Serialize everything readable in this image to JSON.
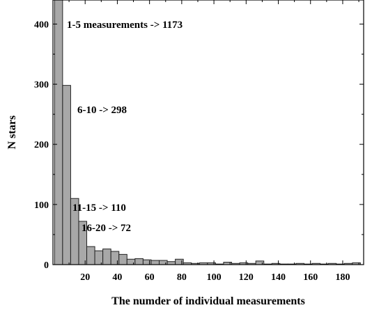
{
  "chart_data": {
    "type": "bar",
    "title": "",
    "xlabel": "The numder of individual measurements",
    "ylabel": "N stars",
    "xlim": [
      0,
      193
    ],
    "ylim": [
      0,
      440
    ],
    "x_ticks": [
      20,
      40,
      60,
      80,
      100,
      120,
      140,
      160,
      180
    ],
    "y_ticks": [
      0,
      100,
      200,
      300,
      400
    ],
    "grid": false,
    "bin_width": 5,
    "bin_starts": [
      1,
      6,
      11,
      16,
      21,
      26,
      31,
      36,
      41,
      46,
      51,
      56,
      61,
      66,
      71,
      76,
      81,
      86,
      91,
      96,
      101,
      106,
      111,
      116,
      121,
      126,
      131,
      136,
      141,
      146,
      151,
      156,
      161,
      166,
      171,
      176,
      181,
      186
    ],
    "values": [
      1173,
      298,
      110,
      72,
      30,
      23,
      26,
      22,
      17,
      9,
      10,
      8,
      7,
      7,
      5,
      9,
      3,
      2,
      3,
      3,
      1,
      4,
      2,
      3,
      2,
      6,
      1,
      2,
      1,
      1,
      2,
      1,
      2,
      1,
      2,
      1,
      2,
      3
    ],
    "annotations": [
      {
        "text": "1-5 measurements -> 1173",
        "x": 3,
        "y": 1173
      },
      {
        "text": "6-10 -> 298",
        "x": 8,
        "y": 298
      },
      {
        "text": "11-15  -> 110",
        "x": 13,
        "y": 110
      },
      {
        "text": "16-20  -> 72",
        "x": 18,
        "y": 72
      }
    ]
  }
}
